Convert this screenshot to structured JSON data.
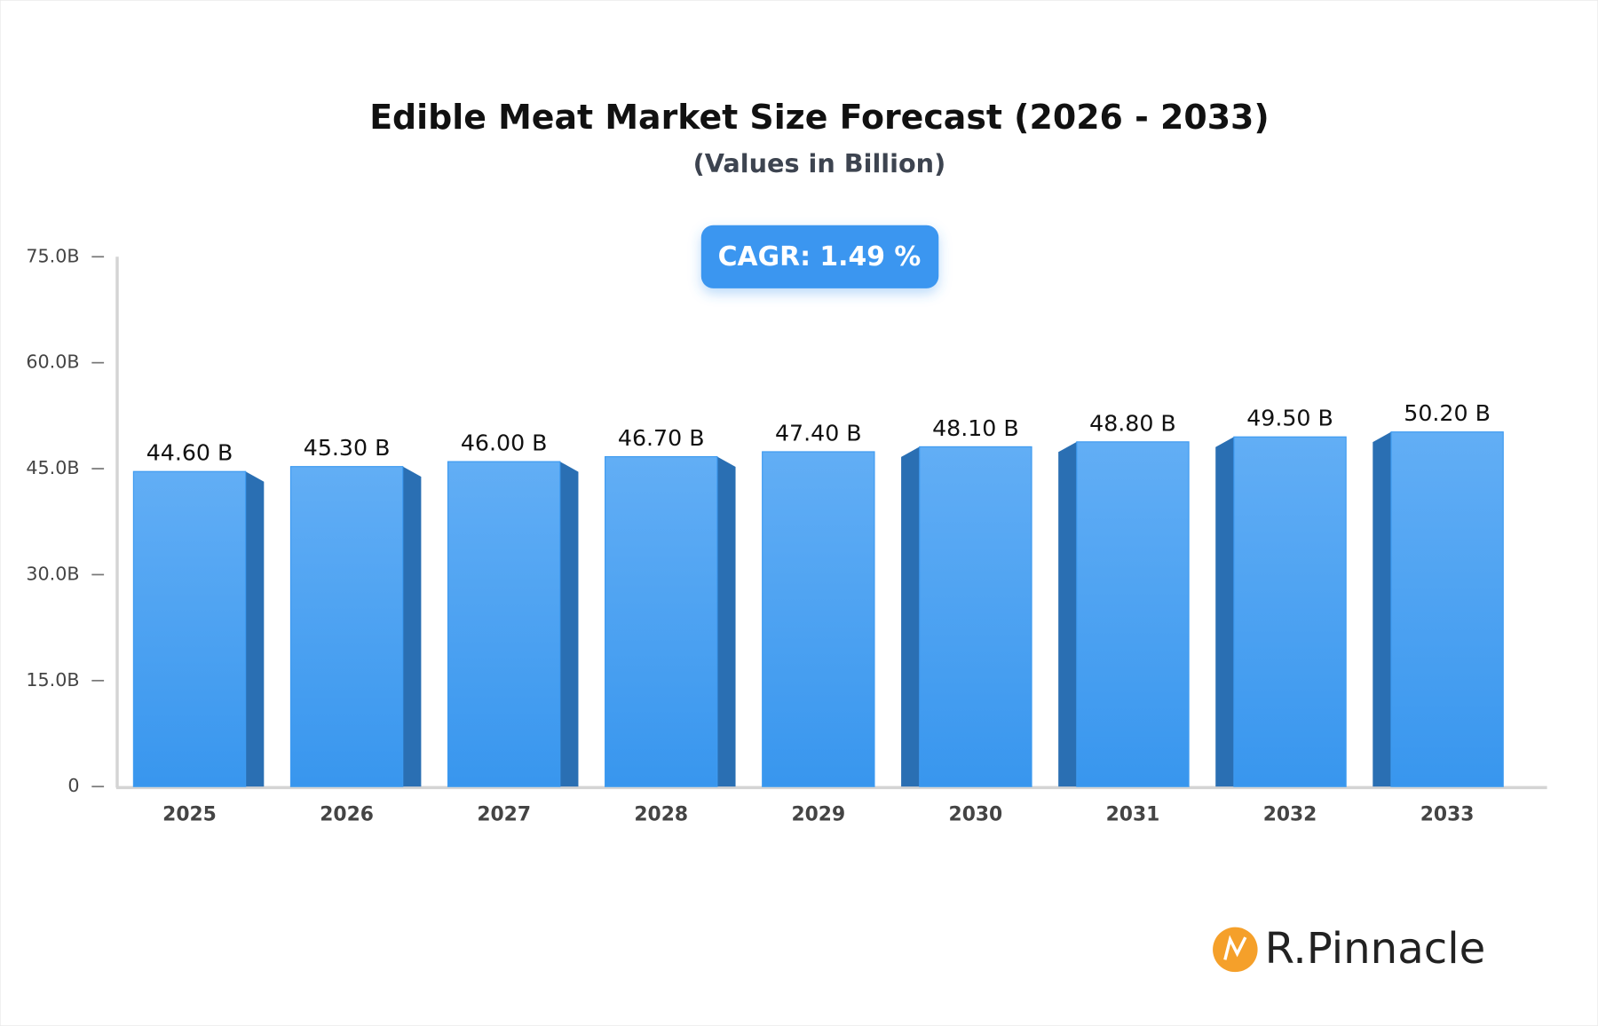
{
  "chart_data": {
    "type": "bar",
    "title": "Edible Meat Market Size Forecast (2026 - 2033)",
    "subtitle": "(Values in Billion)",
    "annotation": "CAGR: 1.49 %",
    "categories": [
      "2025",
      "2026",
      "2027",
      "2028",
      "2029",
      "2030",
      "2031",
      "2032",
      "2033"
    ],
    "values": [
      44.6,
      45.3,
      46.0,
      46.7,
      47.4,
      48.1,
      48.8,
      49.5,
      50.2
    ],
    "value_labels": [
      "44.60 B",
      "45.30 B",
      "46.00 B",
      "46.70 B",
      "47.40 B",
      "48.10 B",
      "48.80 B",
      "49.50 B",
      "50.20 B"
    ],
    "color": "#3d9af0",
    "ylim": [
      0,
      75
    ],
    "yticks": [
      0,
      {
        "value": 15,
        "label": "15.0B"
      },
      {
        "value": 30,
        "label": "30.0B"
      },
      {
        "value": 45,
        "label": "45.0B"
      },
      {
        "value": 60,
        "label": "60.0B"
      },
      {
        "value": 75,
        "label": "75.0B"
      }
    ],
    "grid": false
  },
  "logo": "R.Pinnacle"
}
